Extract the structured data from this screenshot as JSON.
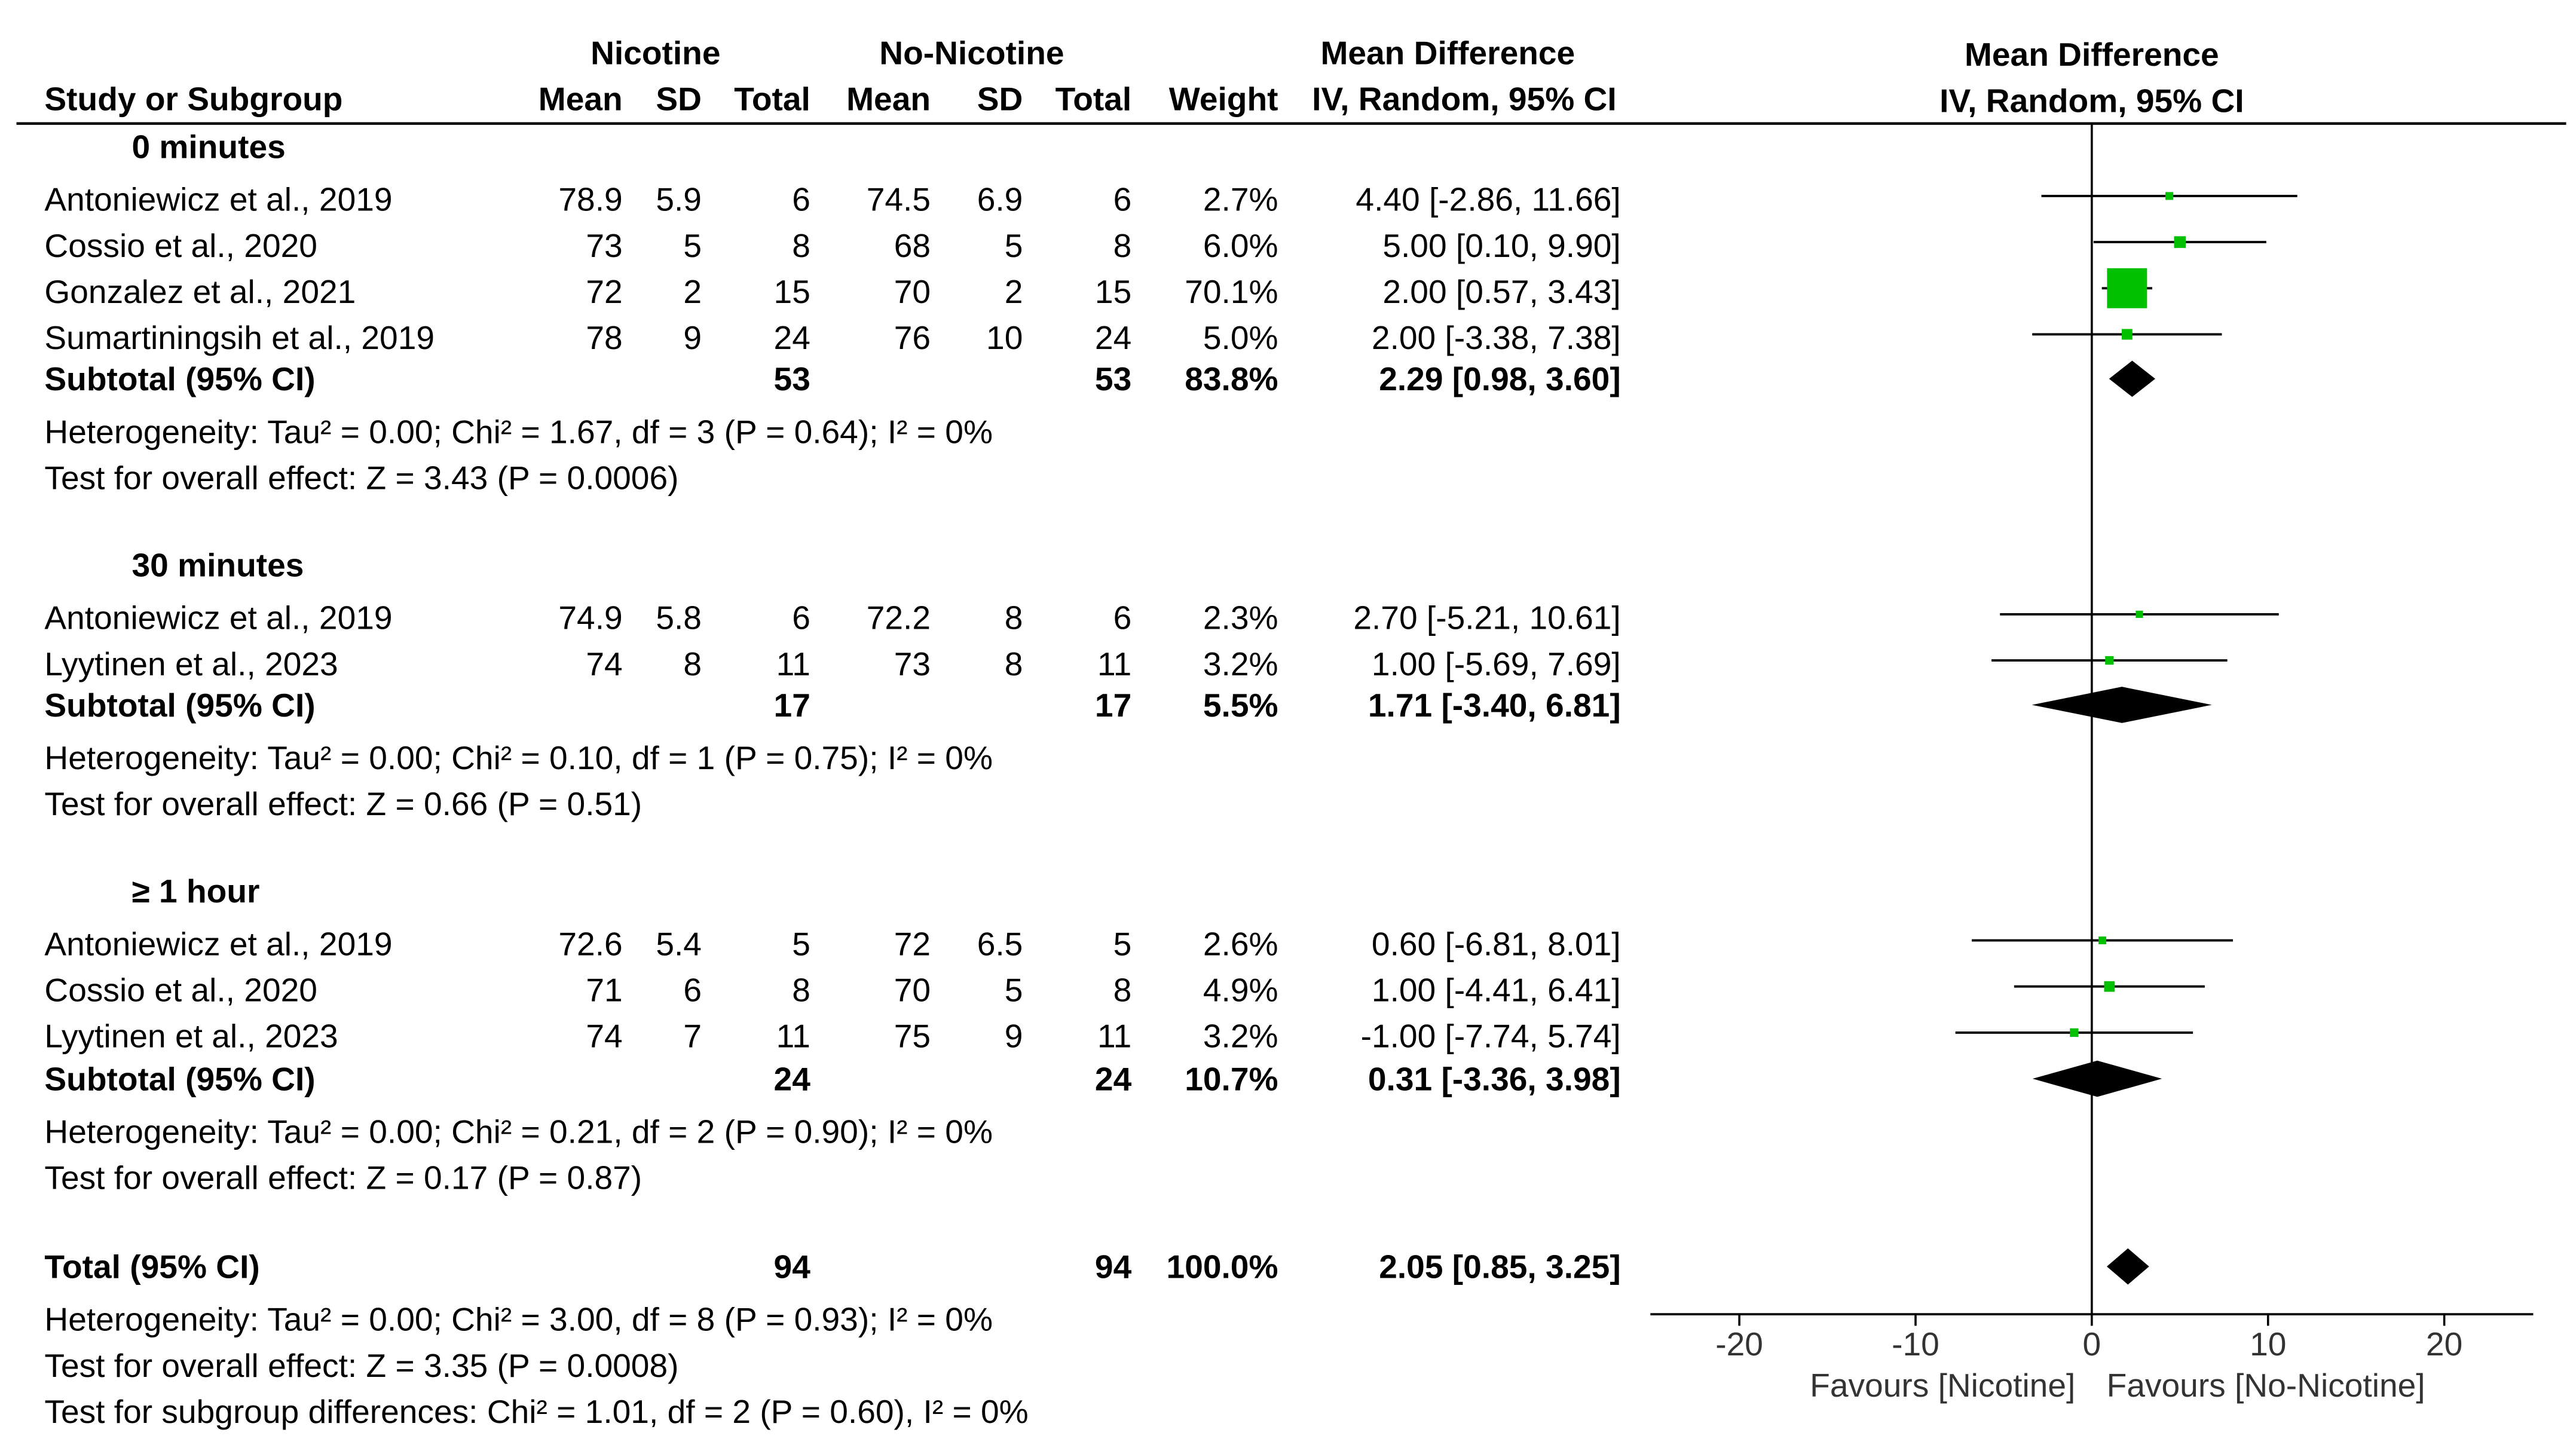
{
  "header": {
    "group1": "Nicotine",
    "group2": "No-Nicotine",
    "effect_title": "Mean Difference",
    "study_col": "Study or Subgroup",
    "mean": "Mean",
    "sd": "SD",
    "total": "Total",
    "weight": "Weight",
    "method": "IV, Random, 95% CI"
  },
  "subgroups": [
    {
      "title": "0 minutes",
      "studies": [
        {
          "name": "Antoniewicz et al., 2019",
          "m1": "78.9",
          "sd1": "5.9",
          "n1": "6",
          "m2": "74.5",
          "sd2": "6.9",
          "n2": "6",
          "weight": "2.7%",
          "ci": "4.40 [-2.86, 11.66]"
        },
        {
          "name": "Cossio et al., 2020",
          "m1": "73",
          "sd1": "5",
          "n1": "8",
          "m2": "68",
          "sd2": "5",
          "n2": "8",
          "weight": "6.0%",
          "ci": "5.00 [0.10, 9.90]"
        },
        {
          "name": "Gonzalez et al., 2021",
          "m1": "72",
          "sd1": "2",
          "n1": "15",
          "m2": "70",
          "sd2": "2",
          "n2": "15",
          "weight": "70.1%",
          "ci": "2.00 [0.57, 3.43]"
        },
        {
          "name": "Sumartiningsih et al., 2019",
          "m1": "78",
          "sd1": "9",
          "n1": "24",
          "m2": "76",
          "sd2": "10",
          "n2": "24",
          "weight": "5.0%",
          "ci": "2.00 [-3.38, 7.38]"
        }
      ],
      "subtotal": {
        "label": "Subtotal (95% CI)",
        "n1": "53",
        "n2": "53",
        "weight": "83.8%",
        "ci": "2.29 [0.98, 3.60]"
      },
      "heterogeneity": "Heterogeneity: Tau² = 0.00; Chi² = 1.67, df = 3 (P = 0.64); I² = 0%",
      "overall": "Test for overall effect: Z = 3.43 (P = 0.0006)"
    },
    {
      "title": "30 minutes",
      "studies": [
        {
          "name": "Antoniewicz et al., 2019",
          "m1": "74.9",
          "sd1": "5.8",
          "n1": "6",
          "m2": "72.2",
          "sd2": "8",
          "n2": "6",
          "weight": "2.3%",
          "ci": "2.70 [-5.21, 10.61]"
        },
        {
          "name": "Lyytinen et al., 2023",
          "m1": "74",
          "sd1": "8",
          "n1": "11",
          "m2": "73",
          "sd2": "8",
          "n2": "11",
          "weight": "3.2%",
          "ci": "1.00 [-5.69, 7.69]"
        }
      ],
      "subtotal": {
        "label": "Subtotal (95% CI)",
        "n1": "17",
        "n2": "17",
        "weight": "5.5%",
        "ci": "1.71 [-3.40, 6.81]"
      },
      "heterogeneity": "Heterogeneity: Tau² = 0.00; Chi² = 0.10, df = 1 (P = 0.75); I² = 0%",
      "overall": "Test for overall effect: Z = 0.66 (P = 0.51)"
    },
    {
      "title": "≥ 1 hour",
      "studies": [
        {
          "name": "Antoniewicz et al., 2019",
          "m1": "72.6",
          "sd1": "5.4",
          "n1": "5",
          "m2": "72",
          "sd2": "6.5",
          "n2": "5",
          "weight": "2.6%",
          "ci": "0.60 [-6.81, 8.01]"
        },
        {
          "name": "Cossio et al., 2020",
          "m1": "71",
          "sd1": "6",
          "n1": "8",
          "m2": "70",
          "sd2": "5",
          "n2": "8",
          "weight": "4.9%",
          "ci": "1.00 [-4.41, 6.41]"
        },
        {
          "name": "Lyytinen et al., 2023",
          "m1": "74",
          "sd1": "7",
          "n1": "11",
          "m2": "75",
          "sd2": "9",
          "n2": "11",
          "weight": "3.2%",
          "ci": "-1.00 [-7.74, 5.74]"
        }
      ],
      "subtotal": {
        "label": "Subtotal (95% CI)",
        "n1": "24",
        "n2": "24",
        "weight": "10.7%",
        "ci": "0.31 [-3.36, 3.98]"
      },
      "heterogeneity": "Heterogeneity: Tau² = 0.00; Chi² = 0.21, df = 2 (P = 0.90); I² = 0%",
      "overall": "Test for overall effect: Z = 0.17 (P = 0.87)"
    }
  ],
  "total": {
    "label": "Total (95% CI)",
    "n1": "94",
    "n2": "94",
    "weight": "100.0%",
    "ci": "2.05 [0.85, 3.25]",
    "heterogeneity": "Heterogeneity: Tau² = 0.00; Chi² = 3.00, df = 8 (P = 0.93); I² = 0%",
    "overall": "Test for overall effect: Z = 3.35 (P = 0.0008)",
    "subgroup_diff": "Test for subgroup differences: Chi² = 1.01, df = 2 (P = 0.60), I² = 0%"
  },
  "colors": {
    "square": "#00c000",
    "diamond": "#000000",
    "line": "#000000"
  },
  "chart_data": {
    "type": "forest",
    "title": "Mean Difference",
    "subtitle": "IV, Random, 95% CI",
    "xlabel_left": "Favours [Nicotine]",
    "xlabel_right": "Favours [No-Nicotine]",
    "xlim": [
      -25,
      25
    ],
    "xticks": [
      -20,
      -10,
      0,
      10,
      20
    ],
    "xtick_labels": [
      "-20",
      "-10",
      "0",
      "10",
      "20"
    ],
    "rows": [
      {
        "group": "0 minutes",
        "kind": "study",
        "est": 4.4,
        "lo": -2.86,
        "hi": 11.66,
        "weight": 2.7
      },
      {
        "group": "0 minutes",
        "kind": "study",
        "est": 5.0,
        "lo": 0.1,
        "hi": 9.9,
        "weight": 6.0
      },
      {
        "group": "0 minutes",
        "kind": "study",
        "est": 2.0,
        "lo": 0.57,
        "hi": 3.43,
        "weight": 70.1
      },
      {
        "group": "0 minutes",
        "kind": "study",
        "est": 2.0,
        "lo": -3.38,
        "hi": 7.38,
        "weight": 5.0
      },
      {
        "group": "0 minutes",
        "kind": "subtotal",
        "est": 2.29,
        "lo": 0.98,
        "hi": 3.6
      },
      {
        "group": "30 minutes",
        "kind": "study",
        "est": 2.7,
        "lo": -5.21,
        "hi": 10.61,
        "weight": 2.3
      },
      {
        "group": "30 minutes",
        "kind": "study",
        "est": 1.0,
        "lo": -5.69,
        "hi": 7.69,
        "weight": 3.2
      },
      {
        "group": "30 minutes",
        "kind": "subtotal",
        "est": 1.71,
        "lo": -3.4,
        "hi": 6.81
      },
      {
        "group": "≥ 1 hour",
        "kind": "study",
        "est": 0.6,
        "lo": -6.81,
        "hi": 8.01,
        "weight": 2.6
      },
      {
        "group": "≥ 1 hour",
        "kind": "study",
        "est": 1.0,
        "lo": -4.41,
        "hi": 6.41,
        "weight": 4.9
      },
      {
        "group": "≥ 1 hour",
        "kind": "study",
        "est": -1.0,
        "lo": -7.74,
        "hi": 5.74,
        "weight": 3.2
      },
      {
        "group": "≥ 1 hour",
        "kind": "subtotal",
        "est": 0.31,
        "lo": -3.36,
        "hi": 3.98
      },
      {
        "group": "Total",
        "kind": "total",
        "est": 2.05,
        "lo": 0.85,
        "hi": 3.25
      }
    ]
  }
}
